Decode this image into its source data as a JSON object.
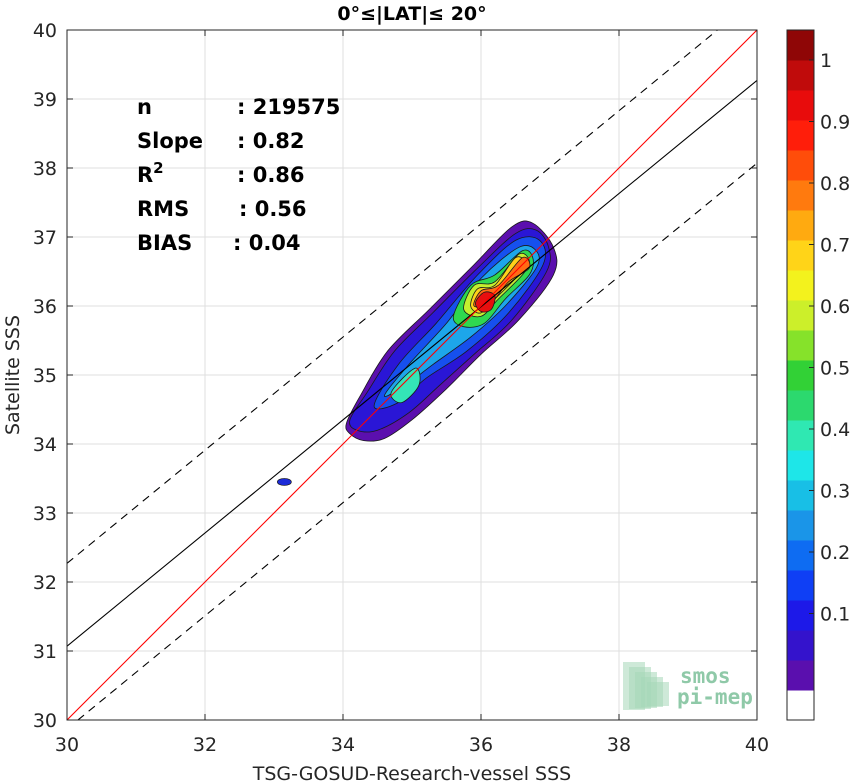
{
  "chart_data": {
    "type": "contour-density",
    "title": "0°≤|LAT|≤ 20°",
    "xlabel": "TSG-GOSUD-Research-vessel SSS",
    "ylabel": "Satellite SSS",
    "xlim": [
      30,
      40
    ],
    "ylim": [
      30,
      40
    ],
    "xticks": [
      "30",
      "32",
      "34",
      "36",
      "38",
      "40"
    ],
    "yticks": [
      "30",
      "31",
      "32",
      "33",
      "34",
      "35",
      "36",
      "37",
      "38",
      "39",
      "40"
    ],
    "grid": true,
    "stats": [
      {
        "label": "n",
        "value": ": 219575"
      },
      {
        "label": "Slope",
        "value": ": 0.82"
      },
      {
        "label": "R",
        "sup": "2",
        "value": ": 0.86"
      },
      {
        "label": "RMS",
        "value": ": 0.56"
      },
      {
        "label": "BIAS",
        "value": ": 0.04"
      }
    ],
    "lines": {
      "identity": {
        "slope": 1.0,
        "intercept": 0.0,
        "color": "#ff0000"
      },
      "regression": {
        "slope": 0.82,
        "intercept": 6.47,
        "color": "#000000"
      },
      "upper_dashed": {
        "slope": 0.82,
        "intercept": 7.67,
        "color": "#000000"
      },
      "lower_dashed": {
        "slope": 0.82,
        "intercept": 5.27,
        "color": "#000000"
      }
    },
    "contour_levels": [
      {
        "level": 0.05,
        "color": "#5b0fae",
        "points": [
          [
            34.05,
            34.3
          ],
          [
            34.25,
            34.7
          ],
          [
            34.65,
            35.35
          ],
          [
            35.25,
            35.95
          ],
          [
            35.9,
            36.6
          ],
          [
            36.45,
            37.15
          ],
          [
            36.75,
            37.2
          ],
          [
            37.05,
            36.85
          ],
          [
            37.05,
            36.45
          ],
          [
            36.55,
            35.8
          ],
          [
            36.0,
            35.3
          ],
          [
            35.5,
            34.8
          ],
          [
            35.0,
            34.35
          ],
          [
            34.6,
            34.08
          ],
          [
            34.3,
            34.05
          ],
          [
            34.1,
            34.15
          ]
        ]
      },
      {
        "level": 0.15,
        "color": "#2a16d6",
        "points": [
          [
            34.1,
            34.35
          ],
          [
            34.35,
            34.75
          ],
          [
            34.75,
            35.35
          ],
          [
            35.3,
            35.9
          ],
          [
            35.95,
            36.55
          ],
          [
            36.5,
            37.05
          ],
          [
            36.8,
            37.1
          ],
          [
            36.98,
            36.85
          ],
          [
            36.95,
            36.5
          ],
          [
            36.45,
            35.8
          ],
          [
            35.9,
            35.3
          ],
          [
            35.4,
            34.85
          ],
          [
            34.95,
            34.45
          ],
          [
            34.5,
            34.2
          ],
          [
            34.2,
            34.2
          ]
        ]
      },
      {
        "level": 0.25,
        "color": "#1650ee",
        "points": [
          [
            34.45,
            34.55
          ],
          [
            34.8,
            35.15
          ],
          [
            35.35,
            35.75
          ],
          [
            35.95,
            36.45
          ],
          [
            36.5,
            36.95
          ],
          [
            36.85,
            36.95
          ],
          [
            36.9,
            36.6
          ],
          [
            36.4,
            35.9
          ],
          [
            35.8,
            35.35
          ],
          [
            35.2,
            34.95
          ],
          [
            34.8,
            34.6
          ]
        ]
      },
      {
        "level": 0.35,
        "color": "#1da6ea",
        "points": [
          [
            34.6,
            34.7
          ],
          [
            34.95,
            35.15
          ],
          [
            35.5,
            35.75
          ],
          [
            36.0,
            36.4
          ],
          [
            36.55,
            36.85
          ],
          [
            36.8,
            36.8
          ],
          [
            36.8,
            36.55
          ],
          [
            36.35,
            36.0
          ],
          [
            35.85,
            35.55
          ],
          [
            35.3,
            35.15
          ],
          [
            34.9,
            34.85
          ]
        ]
      },
      {
        "level": 0.45,
        "color": "#34e5b7",
        "points": [
          [
            34.7,
            34.75
          ],
          [
            35.05,
            35.1
          ],
          [
            35.1,
            34.85
          ],
          [
            34.85,
            34.6
          ]
        ]
      },
      {
        "level": 0.5,
        "color": "#2fd84f",
        "points": [
          [
            35.6,
            35.85
          ],
          [
            35.85,
            36.3
          ],
          [
            36.2,
            36.45
          ],
          [
            36.6,
            36.8
          ],
          [
            36.75,
            36.7
          ],
          [
            36.7,
            36.45
          ],
          [
            36.35,
            36.1
          ],
          [
            36.05,
            35.75
          ],
          [
            35.75,
            35.7
          ]
        ]
      },
      {
        "level": 0.6,
        "color": "#c4ef2f",
        "points": [
          [
            35.75,
            35.95
          ],
          [
            35.9,
            36.3
          ],
          [
            36.2,
            36.35
          ],
          [
            36.55,
            36.75
          ],
          [
            36.7,
            36.65
          ],
          [
            36.6,
            36.45
          ],
          [
            36.25,
            36.1
          ],
          [
            36.0,
            35.85
          ]
        ]
      },
      {
        "level": 0.7,
        "color": "#ffd21a",
        "points": [
          [
            35.85,
            36.0
          ],
          [
            35.95,
            36.25
          ],
          [
            36.2,
            36.3
          ],
          [
            36.5,
            36.7
          ],
          [
            36.65,
            36.6
          ],
          [
            36.5,
            36.4
          ],
          [
            36.2,
            36.1
          ],
          [
            36.0,
            35.9
          ]
        ]
      },
      {
        "level": 0.8,
        "color": "#ff6a14",
        "points": [
          [
            35.9,
            36.0
          ],
          [
            36.0,
            36.22
          ],
          [
            36.25,
            36.3
          ],
          [
            36.6,
            36.7
          ],
          [
            36.7,
            36.55
          ],
          [
            36.4,
            36.35
          ],
          [
            36.15,
            36.05
          ]
        ]
      },
      {
        "level": 0.9,
        "color": "#e80f0f",
        "points": [
          [
            35.92,
            36.05
          ],
          [
            36.05,
            36.2
          ],
          [
            36.2,
            36.15
          ],
          [
            36.15,
            35.95
          ],
          [
            36.0,
            35.92
          ]
        ]
      }
    ],
    "outlier_blob": {
      "x": 33.15,
      "y": 33.45,
      "color": "#1c2bd8"
    },
    "colorbar": {
      "ticks": [
        "0.1",
        "0.2",
        "0.3",
        "0.4",
        "0.5",
        "0.6",
        "0.7",
        "0.8",
        "0.9",
        "1"
      ],
      "tick_values": [
        0.1,
        0.2,
        0.3,
        0.4,
        0.5,
        0.6,
        0.7,
        0.8,
        0.9,
        1.0
      ],
      "colors": [
        "#ffffff",
        "#5a0fae",
        "#3413cc",
        "#1d19e8",
        "#0f3ff5",
        "#0e6cf2",
        "#1a95e8",
        "#18bfe6",
        "#1ee6e8",
        "#2fe8b2",
        "#2cd96e",
        "#32d136",
        "#86e22a",
        "#ccef2a",
        "#f3f21d",
        "#ffd418",
        "#ffaa10",
        "#ff7a0e",
        "#ff4d0a",
        "#ff1e0a",
        "#e80c0c",
        "#c00b0b",
        "#8f0606"
      ]
    },
    "logo": {
      "line1": "smos",
      "line2": "pi-mep"
    }
  }
}
